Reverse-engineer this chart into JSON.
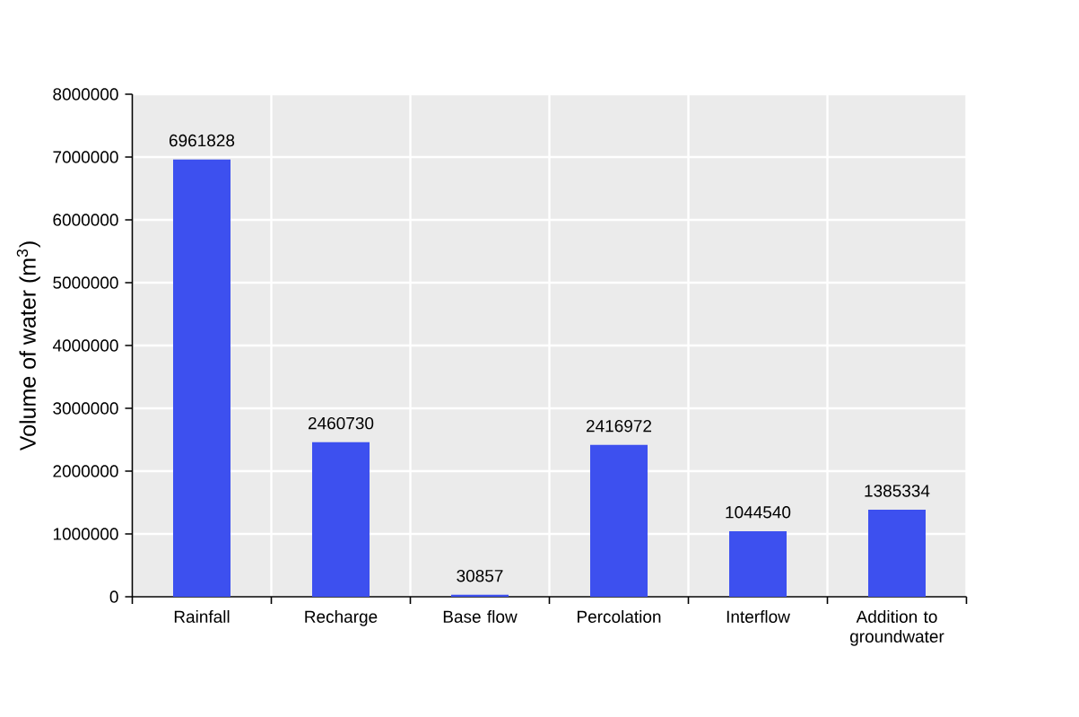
{
  "chart_data": {
    "type": "bar",
    "ylabel": "Volume of water (m$^{3}$)",
    "categories": [
      "Rainfall",
      "Recharge",
      "Base flow",
      "Percolation",
      "Interflow",
      "Addition to groundwater"
    ],
    "values": [
      6961828,
      2460730,
      30857,
      2416972,
      1044540,
      1385334
    ],
    "color": "#3d50ef",
    "ylim": [
      0,
      8000000
    ],
    "yticks": [
      0,
      1000000,
      2000000,
      3000000,
      4000000,
      5000000,
      6000000,
      7000000,
      8000000
    ],
    "grid": true,
    "data_labels": true
  }
}
